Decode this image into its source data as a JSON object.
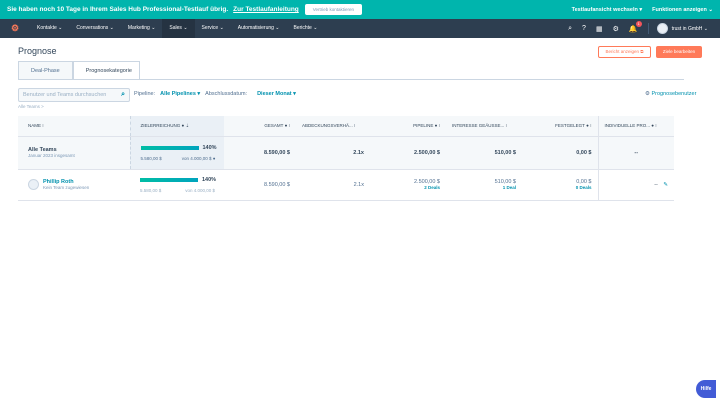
{
  "banner": {
    "text": "Sie haben noch 10 Tage in Ihrem Sales Hub Professional-Testlauf übrig.",
    "link": "Zur Testlaufanleitung",
    "button": "Vertrieb kontaktieren",
    "switch": "Testlaufansicht wechseln ▾",
    "features": "Funktionen anzeigen ⌄"
  },
  "nav": {
    "items": [
      "Kontakte ⌄",
      "Conversations ⌄",
      "Marketing ⌄",
      "Sales ⌄",
      "Service ⌄",
      "Automatisierung ⌄",
      "Berichte ⌄"
    ],
    "notifications": "1",
    "account": "trust in GmbH ⌄"
  },
  "page": {
    "title": "Prognose",
    "report_button": "Bericht anzeigen ⧉",
    "edit_goals_button": "Ziele bearbeiten",
    "tabs": [
      "Deal-Phase",
      "Prognosekategorie"
    ]
  },
  "filters": {
    "search_placeholder": "Benutzer und Teams durchsuchen",
    "pipeline_label": "Pipeline:",
    "pipeline_value": "Alle Pipelines ▾",
    "date_label": "Abschlussdatum:",
    "date_value": "Dieser Monat ▾",
    "forecast_users": "Prognosebenutzer",
    "breadcrumb": "Alle Teams >"
  },
  "table": {
    "headers": [
      "NAME ⁝",
      "ZIELERREICHUNG ● ⇣",
      "GESAMT ● ⁝",
      "ABDECKUNGSVERHÄ... ⁝",
      "PIPELINE ● ⁝",
      "INTERESSE GEÄUSSE... ⁝",
      "FESTGELEGT ● ⁝",
      "INDIVIDUELLE PRO... ● ⁝"
    ],
    "rows": [
      {
        "name": "Alle Teams",
        "sub": "Januar 2023 insgesamt",
        "progress": 140,
        "progress_label": "140%",
        "achieved": "5.580,00 $",
        "goal": "von 4.000,00 $ ●",
        "total": "8.590,00 $",
        "coverage": "2.1x",
        "pipeline": "2.500,00 $",
        "interest": "510,00 $",
        "committed": "0,00 $",
        "individual": "--"
      },
      {
        "name": "Phillip Roth",
        "sub": "Kein Team zugewiesen",
        "progress": 140,
        "progress_label": "140%",
        "achieved": "5.580,00 $",
        "goal": "von 4.000,00 $",
        "total": "8.590,00 $",
        "coverage": "2.1x",
        "pipeline": "2.500,00 $",
        "pipeline_deals": "2 Deals",
        "interest": "510,00 $",
        "interest_deals": "1 Deal",
        "committed": "0,00 $",
        "committed_deals": "0 Deals",
        "individual": "--"
      }
    ]
  },
  "help": "Hilfe",
  "colors": {
    "banner": "#00b5ad",
    "nav": "#2d3e50",
    "accent": "#ff7a59",
    "link": "#0091ae"
  }
}
